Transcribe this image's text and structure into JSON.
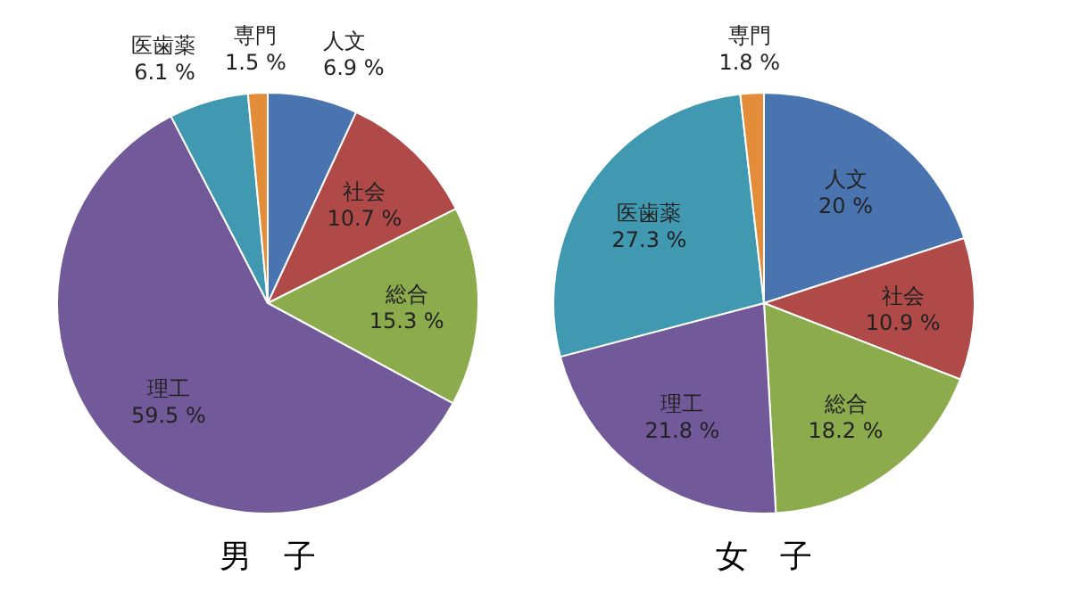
{
  "chart_data": [
    {
      "type": "pie",
      "title": "男　子",
      "categories": [
        "人文",
        "社会",
        "総合",
        "理工",
        "医歯薬",
        "専門"
      ],
      "values": [
        6.9,
        10.7,
        15.3,
        59.5,
        6.1,
        1.5
      ],
      "value_labels": [
        "6.9 %",
        "10.7 %",
        "15.3 %",
        "59.5 %",
        "6.1 %",
        "1.5 %"
      ],
      "colors": [
        "#4a74b0",
        "#b04a48",
        "#8cab4c",
        "#725a9a",
        "#4099b0",
        "#e38c3a"
      ]
    },
    {
      "type": "pie",
      "title": "女　子",
      "categories": [
        "人文",
        "社会",
        "総合",
        "理工",
        "医歯薬",
        "専門"
      ],
      "values": [
        20,
        10.9,
        18.2,
        21.8,
        27.3,
        1.8
      ],
      "value_labels": [
        "20 %",
        "10.9 %",
        "18.2 %",
        "21.8 %",
        "27.3 %",
        "1.8 %"
      ],
      "colors": [
        "#4a74b0",
        "#b04a48",
        "#8cab4c",
        "#725a9a",
        "#4099b0",
        "#e38c3a"
      ]
    }
  ]
}
